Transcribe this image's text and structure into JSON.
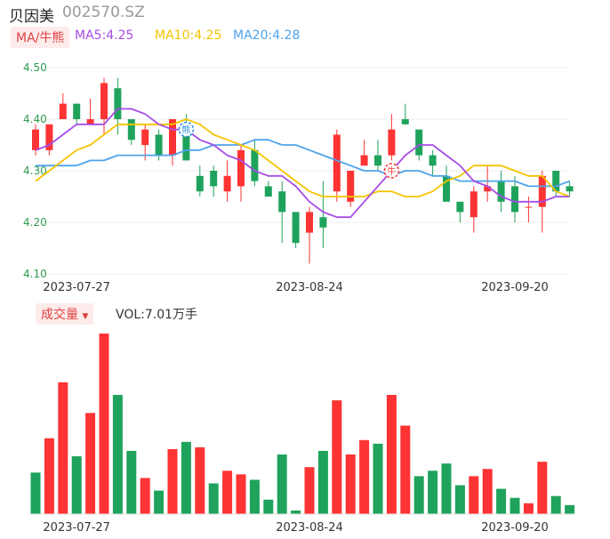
{
  "header": {
    "stock_name": "贝因美",
    "stock_code": "002570.SZ"
  },
  "ma_legend": {
    "toggle_label": "MA/牛熊",
    "ma5": "MA5:4.25",
    "ma10": "MA10:4.25",
    "ma20": "MA20:4.28"
  },
  "volume_legend": {
    "toggle_label": "成交量",
    "dropdown_glyph": "▼",
    "vol_text": "VOL:7.01万手"
  },
  "colors": {
    "up": "#fe3333",
    "down": "#1fa35c",
    "ma5": "#a64ce6",
    "ma10": "#f5c400",
    "ma20": "#4ea3ea",
    "chip_bg": "#fdeceb",
    "chip_text": "#e04040"
  },
  "chart_data": [
    {
      "type": "candlestick",
      "ylim": [
        4.1,
        4.5
      ],
      "y_ticks": [
        "4.50",
        "4.40",
        "4.30",
        "4.20",
        "4.10"
      ],
      "x_tick_labels": [
        {
          "index": 3,
          "label": "2023-07-27"
        },
        {
          "index": 20,
          "label": "2023-08-24"
        },
        {
          "index": 35,
          "label": "2023-09-20"
        }
      ],
      "candles": [
        {
          "o": 4.34,
          "h": 4.39,
          "l": 4.33,
          "c": 4.38
        },
        {
          "o": 4.34,
          "h": 4.39,
          "l": 4.33,
          "c": 4.39
        },
        {
          "o": 4.4,
          "h": 4.45,
          "l": 4.4,
          "c": 4.43
        },
        {
          "o": 4.43,
          "h": 4.43,
          "l": 4.39,
          "c": 4.4
        },
        {
          "o": 4.39,
          "h": 4.44,
          "l": 4.39,
          "c": 4.4
        },
        {
          "o": 4.4,
          "h": 4.48,
          "l": 4.37,
          "c": 4.47
        },
        {
          "o": 4.46,
          "h": 4.48,
          "l": 4.37,
          "c": 4.4
        },
        {
          "o": 4.4,
          "h": 4.4,
          "l": 4.35,
          "c": 4.36
        },
        {
          "o": 4.35,
          "h": 4.39,
          "l": 4.32,
          "c": 4.38
        },
        {
          "o": 4.37,
          "h": 4.38,
          "l": 4.32,
          "c": 4.33
        },
        {
          "o": 4.33,
          "h": 4.4,
          "l": 4.31,
          "c": 4.4
        },
        {
          "o": 4.39,
          "h": 4.41,
          "l": 4.32,
          "c": 4.32
        },
        {
          "o": 4.29,
          "h": 4.31,
          "l": 4.25,
          "c": 4.26
        },
        {
          "o": 4.3,
          "h": 4.31,
          "l": 4.25,
          "c": 4.27
        },
        {
          "o": 4.26,
          "h": 4.32,
          "l": 4.24,
          "c": 4.29
        },
        {
          "o": 4.27,
          "h": 4.35,
          "l": 4.24,
          "c": 4.34
        },
        {
          "o": 4.34,
          "h": 4.36,
          "l": 4.27,
          "c": 4.28
        },
        {
          "o": 4.27,
          "h": 4.28,
          "l": 4.25,
          "c": 4.25
        },
        {
          "o": 4.26,
          "h": 4.28,
          "l": 4.16,
          "c": 4.22
        },
        {
          "o": 4.22,
          "h": 4.22,
          "l": 4.15,
          "c": 4.16
        },
        {
          "o": 4.18,
          "h": 4.23,
          "l": 4.12,
          "c": 4.22
        },
        {
          "o": 4.21,
          "h": 4.28,
          "l": 4.15,
          "c": 4.19
        },
        {
          "o": 4.26,
          "h": 4.38,
          "l": 4.24,
          "c": 4.37
        },
        {
          "o": 4.24,
          "h": 4.3,
          "l": 4.23,
          "c": 4.3
        },
        {
          "o": 4.31,
          "h": 4.36,
          "l": 4.31,
          "c": 4.33
        },
        {
          "o": 4.33,
          "h": 4.36,
          "l": 4.3,
          "c": 4.31
        },
        {
          "o": 4.33,
          "h": 4.41,
          "l": 4.32,
          "c": 4.38
        },
        {
          "o": 4.4,
          "h": 4.43,
          "l": 4.39,
          "c": 4.39
        },
        {
          "o": 4.38,
          "h": 4.38,
          "l": 4.32,
          "c": 4.33
        },
        {
          "o": 4.33,
          "h": 4.34,
          "l": 4.29,
          "c": 4.31
        },
        {
          "o": 4.29,
          "h": 4.31,
          "l": 4.24,
          "c": 4.24
        },
        {
          "o": 4.24,
          "h": 4.24,
          "l": 4.2,
          "c": 4.22
        },
        {
          "o": 4.21,
          "h": 4.27,
          "l": 4.18,
          "c": 4.26
        },
        {
          "o": 4.26,
          "h": 4.31,
          "l": 4.24,
          "c": 4.27
        },
        {
          "o": 4.28,
          "h": 4.3,
          "l": 4.22,
          "c": 4.24
        },
        {
          "o": 4.27,
          "h": 4.29,
          "l": 4.2,
          "c": 4.22
        },
        {
          "o": 4.23,
          "h": 4.25,
          "l": 4.2,
          "c": 4.23
        },
        {
          "o": 4.23,
          "h": 4.3,
          "l": 4.18,
          "c": 4.29
        },
        {
          "o": 4.3,
          "h": 4.3,
          "l": 4.25,
          "c": 4.26
        },
        {
          "o": 4.27,
          "h": 4.28,
          "l": 4.25,
          "c": 4.26
        }
      ],
      "ma5": [
        4.34,
        4.35,
        4.37,
        4.39,
        4.39,
        4.39,
        4.42,
        4.42,
        4.41,
        4.39,
        4.38,
        4.38,
        4.36,
        4.35,
        4.33,
        4.32,
        4.3,
        4.29,
        4.29,
        4.27,
        4.24,
        4.22,
        4.21,
        4.21,
        4.24,
        4.27,
        4.3,
        4.33,
        4.35,
        4.35,
        4.33,
        4.31,
        4.28,
        4.27,
        4.25,
        4.24,
        4.24,
        4.24,
        4.25,
        4.25
      ],
      "ma10": [
        4.28,
        4.3,
        4.32,
        4.34,
        4.35,
        4.37,
        4.39,
        4.39,
        4.39,
        4.39,
        4.39,
        4.4,
        4.39,
        4.37,
        4.36,
        4.35,
        4.34,
        4.32,
        4.3,
        4.28,
        4.26,
        4.25,
        4.25,
        4.25,
        4.25,
        4.26,
        4.26,
        4.25,
        4.25,
        4.26,
        4.28,
        4.29,
        4.31,
        4.31,
        4.31,
        4.3,
        4.29,
        4.29,
        4.26,
        4.25
      ],
      "ma20": [
        4.31,
        4.31,
        4.31,
        4.31,
        4.32,
        4.32,
        4.33,
        4.33,
        4.33,
        4.33,
        4.33,
        4.34,
        4.34,
        4.35,
        4.35,
        4.35,
        4.36,
        4.36,
        4.35,
        4.35,
        4.34,
        4.33,
        4.32,
        4.31,
        4.3,
        4.3,
        4.29,
        4.3,
        4.3,
        4.29,
        4.29,
        4.28,
        4.28,
        4.28,
        4.28,
        4.28,
        4.27,
        4.27,
        4.27,
        4.28
      ],
      "markers": [
        {
          "index": 11,
          "label": "熊",
          "series": "ma5"
        },
        {
          "index": 26,
          "label": "牛",
          "series": "ma5"
        }
      ]
    },
    {
      "type": "bar",
      "title": "成交量",
      "ylim": [
        0,
        100
      ],
      "x_tick_labels": [
        {
          "index": 3,
          "label": "2023-07-27"
        },
        {
          "index": 20,
          "label": "2023-08-24"
        },
        {
          "index": 35,
          "label": "2023-09-20"
        }
      ],
      "values": [
        23,
        42,
        73,
        32,
        56,
        100,
        66,
        35,
        20,
        13,
        36,
        40,
        37,
        17,
        24,
        22,
        19,
        8,
        33,
        2,
        26,
        35,
        63,
        33,
        41,
        39,
        66,
        49,
        21,
        24,
        28,
        16,
        21,
        25,
        14,
        9,
        6,
        29,
        10,
        5
      ],
      "up": [
        false,
        true,
        true,
        false,
        true,
        true,
        false,
        false,
        true,
        false,
        true,
        false,
        true,
        false,
        true,
        true,
        false,
        false,
        false,
        false,
        true,
        false,
        true,
        true,
        true,
        false,
        true,
        true,
        false,
        false,
        false,
        false,
        true,
        true,
        false,
        false,
        true,
        true,
        false,
        false
      ]
    }
  ]
}
